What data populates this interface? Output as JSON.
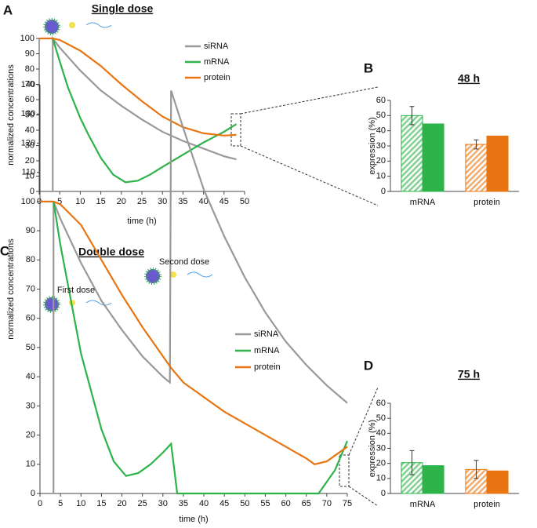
{
  "chart_data": [
    {
      "type": "line",
      "panel_label": "A",
      "title": "Single dose",
      "xlabel": "time (h)",
      "ylabel": "normalized concentrations",
      "xlim": [
        0,
        50
      ],
      "xticks": [
        0,
        5,
        10,
        15,
        20,
        25,
        30,
        35,
        40,
        45,
        50
      ],
      "ylim": [
        0,
        100
      ],
      "yticks": [
        0,
        10,
        20,
        30,
        40,
        50,
        60,
        70,
        80,
        90,
        100
      ],
      "series": [
        {
          "name": "siRNA",
          "color": "#999999",
          "x": [
            3.3,
            3.3,
            5,
            10,
            15,
            20,
            25,
            30,
            35,
            40,
            45,
            48
          ],
          "values": [
            0,
            100,
            94,
            79,
            66,
            56,
            47,
            39,
            33,
            28,
            23,
            21
          ]
        },
        {
          "name": "mRNA",
          "color": "#2db34a",
          "x": [
            3.3,
            5,
            7,
            10,
            12,
            15,
            18,
            21,
            24,
            27,
            30,
            35,
            40,
            45,
            48
          ],
          "values": [
            100,
            85,
            68,
            48,
            37,
            22,
            11,
            6,
            7,
            11,
            16,
            24,
            32,
            39,
            44
          ]
        },
        {
          "name": "protein",
          "color": "#e87511",
          "x": [
            0,
            3.3,
            5,
            10,
            15,
            20,
            25,
            30,
            35,
            40,
            45,
            48
          ],
          "values": [
            100,
            100,
            99,
            92,
            82,
            70,
            59,
            49,
            42,
            38,
            36.5,
            37
          ]
        }
      ]
    },
    {
      "type": "bar",
      "panel_label": "B",
      "title": "48 h",
      "ylabel": "expression (%)",
      "categories": [
        "mRNA",
        "protein"
      ],
      "ylim": [
        0,
        60
      ],
      "yticks": [
        0,
        10,
        20,
        30,
        40,
        50,
        60
      ],
      "series": [
        {
          "colors": [
            "#2db34a",
            "#e87511"
          ],
          "hatched": true,
          "values": [
            50,
            31
          ],
          "errors": [
            6,
            3
          ]
        },
        {
          "colors": [
            "#2db34a",
            "#e87511"
          ],
          "values": [
            44.5,
            36.5
          ]
        }
      ]
    },
    {
      "type": "line",
      "panel_label": "C",
      "title": "Double dose",
      "xlabel": "time (h)",
      "ylabel": "normalized concentrations",
      "annotations": [
        "First dose",
        "Second dose"
      ],
      "xlim": [
        0,
        75
      ],
      "xticks": [
        0,
        5,
        10,
        15,
        20,
        25,
        30,
        35,
        40,
        45,
        50,
        55,
        60,
        65,
        70,
        75
      ],
      "ylim": [
        0,
        140
      ],
      "yticks": [
        0,
        10,
        20,
        30,
        40,
        50,
        60,
        70,
        80,
        90,
        100,
        110,
        120,
        130,
        140
      ],
      "series": [
        {
          "name": "siRNA",
          "color": "#999999",
          "x": [
            3.3,
            3.3,
            5,
            10,
            15,
            20,
            25,
            30,
            31.7,
            32,
            35,
            40,
            45,
            50,
            55,
            60,
            65,
            70,
            75
          ],
          "values": [
            0,
            100,
            94,
            79,
            66,
            56,
            47,
            40,
            38,
            138,
            125,
            104,
            88,
            74,
            62,
            52,
            44,
            37,
            31
          ]
        },
        {
          "name": "mRNA",
          "color": "#2db34a",
          "x": [
            3.3,
            5,
            10,
            15,
            18,
            21,
            24,
            27,
            30,
            32,
            33.5,
            40,
            50,
            60,
            68,
            72,
            75
          ],
          "values": [
            100,
            85,
            48,
            22,
            11,
            6,
            7,
            10,
            14,
            17,
            0,
            0,
            0,
            0,
            0,
            8,
            18
          ]
        },
        {
          "name": "protein",
          "color": "#e87511",
          "x": [
            0,
            3.3,
            5,
            10,
            15,
            20,
            25,
            30,
            32,
            35,
            40,
            45,
            50,
            55,
            60,
            65,
            67,
            70,
            75
          ],
          "values": [
            100,
            100,
            99,
            92,
            80,
            68,
            57,
            47,
            43,
            38,
            33,
            28,
            24,
            20,
            16,
            12,
            10,
            11,
            16
          ]
        }
      ]
    },
    {
      "type": "bar",
      "panel_label": "D",
      "title": "75 h",
      "ylabel": "expression (%)",
      "categories": [
        "mRNA",
        "protein"
      ],
      "ylim": [
        0,
        60
      ],
      "yticks": [
        0,
        10,
        20,
        30,
        40,
        50,
        60
      ],
      "series": [
        {
          "colors": [
            "#2db34a",
            "#e87511"
          ],
          "hatched": true,
          "values": [
            20.5,
            16
          ],
          "errors": [
            8,
            6
          ]
        },
        {
          "colors": [
            "#2db34a",
            "#e87511"
          ],
          "values": [
            18.5,
            15
          ]
        }
      ]
    }
  ]
}
